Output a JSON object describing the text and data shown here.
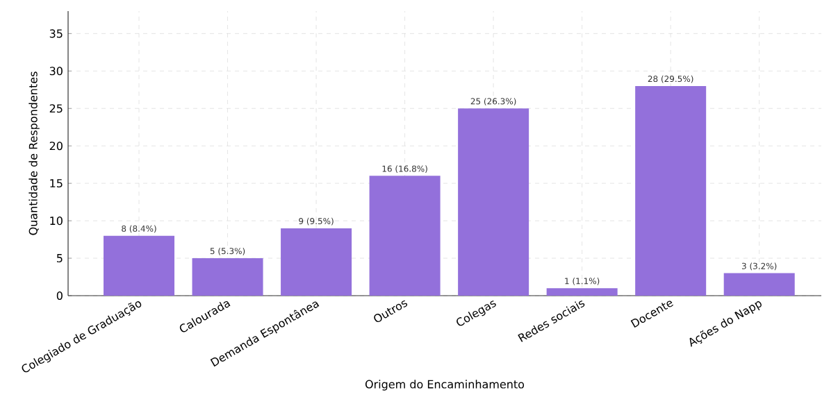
{
  "chart_data": {
    "type": "bar",
    "xlabel": "Origem do Encaminhamento",
    "ylabel": "Quantidade de Respondentes",
    "categories": [
      "Colegiado de Graduação",
      "Calourada",
      "Demanda Espontânea",
      "Outros",
      "Colegas",
      "Redes sociais",
      "Docente",
      "Ações do Napp"
    ],
    "values": [
      8,
      5,
      9,
      16,
      25,
      1,
      28,
      3
    ],
    "value_labels": [
      "8 (8.4%)",
      "5 (5.3%)",
      "9 (9.5%)",
      "16 (16.8%)",
      "25 (26.3%)",
      "1 (1.1%)",
      "28 (29.5%)",
      "3 (3.2%)"
    ],
    "color": "#9370db",
    "ylim": [
      0,
      38
    ],
    "yticks": [
      0,
      5,
      10,
      15,
      20,
      25,
      30,
      35
    ],
    "grid": true
  }
}
